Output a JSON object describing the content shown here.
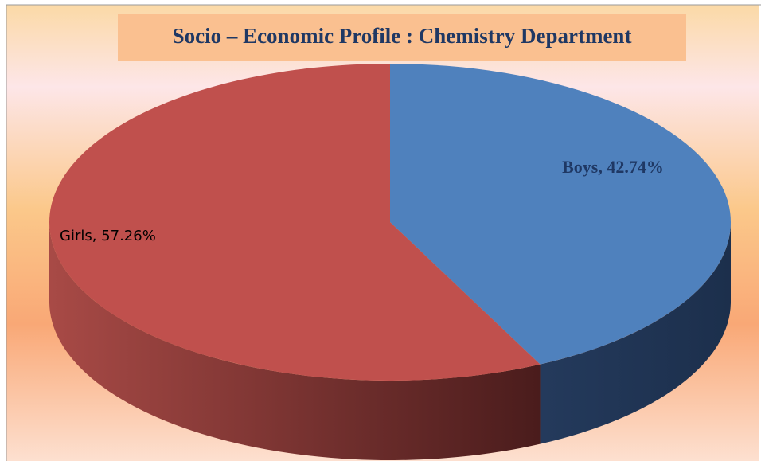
{
  "chart_data": {
    "type": "pie",
    "title": "Socio – Economic  Profile : Chemistry Department",
    "values": [
      42.74,
      57.26
    ],
    "value_labels": [
      "Boys, 42.74%",
      "Girls, 57.26%"
    ],
    "colors": [
      "#4f81bd",
      "#c0504d"
    ]
  }
}
